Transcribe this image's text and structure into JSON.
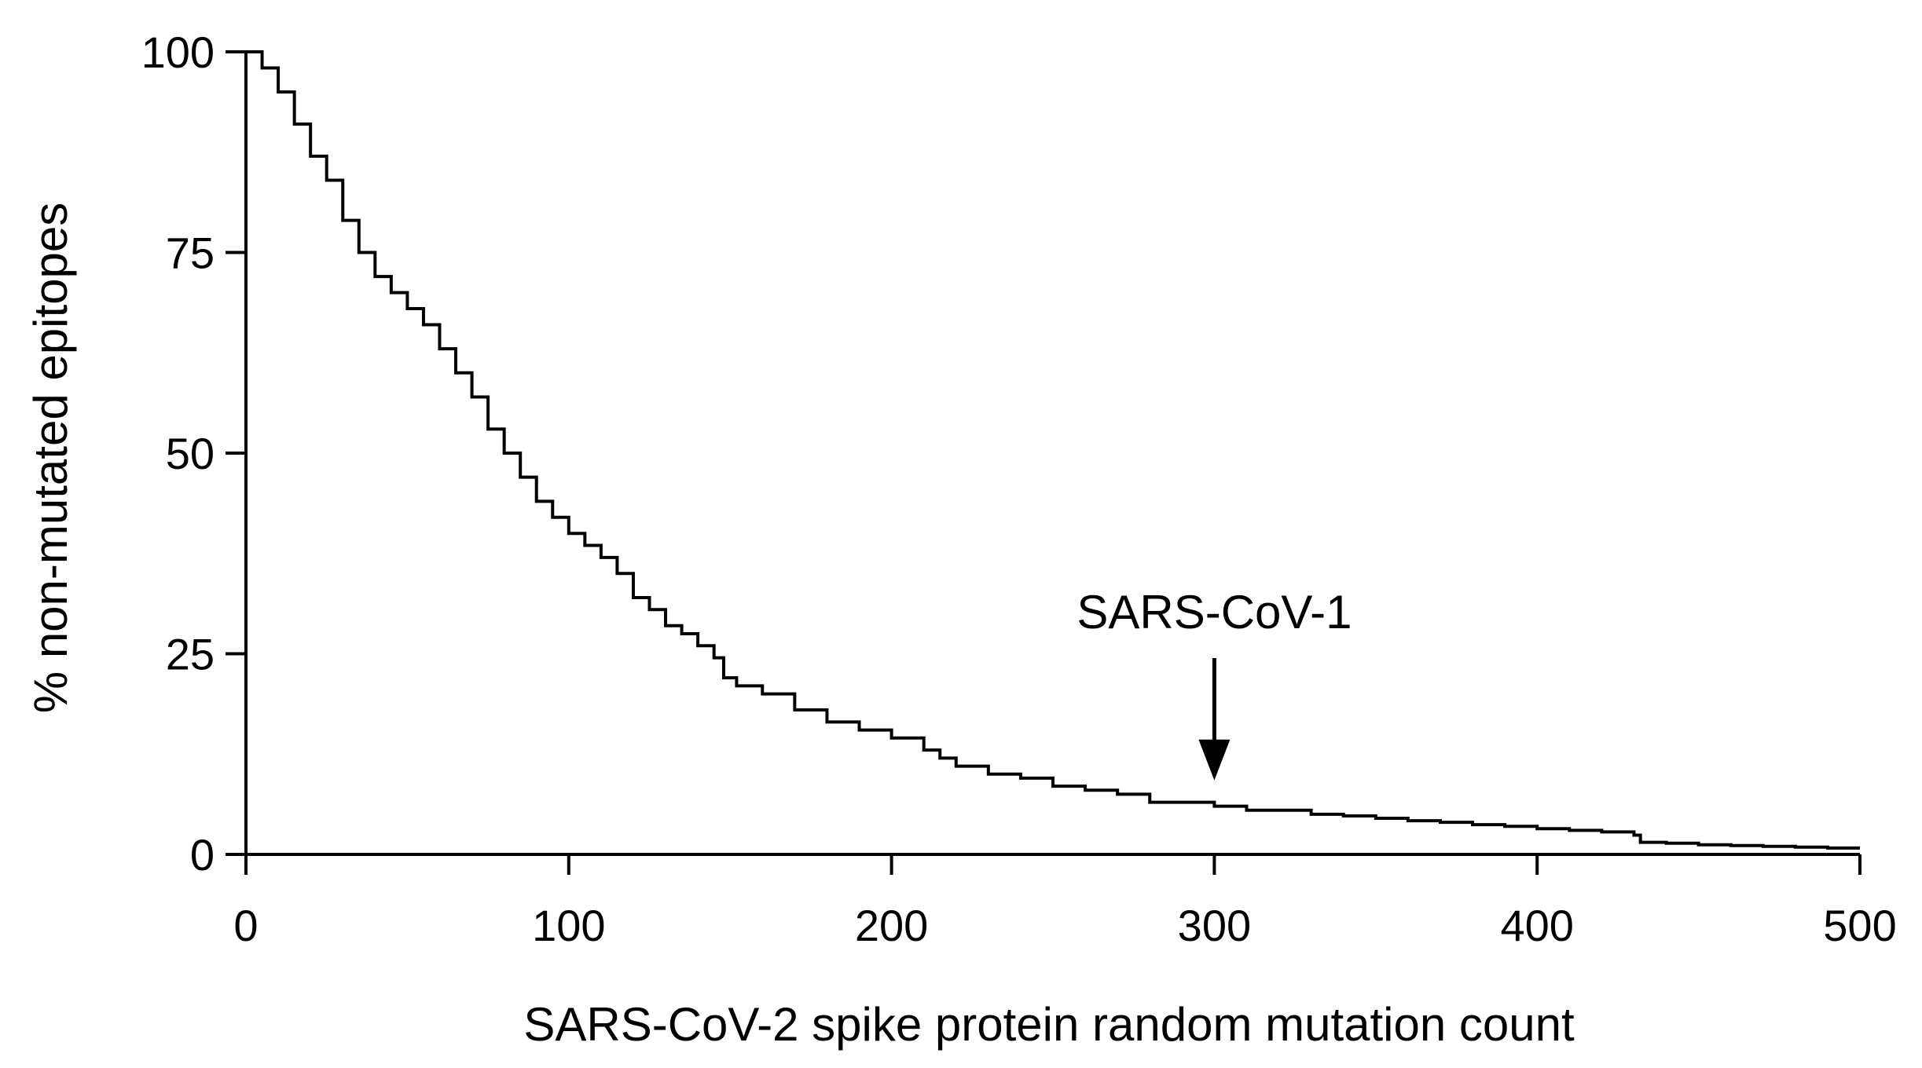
{
  "chart_data": {
    "type": "line",
    "xlabel": "SARS-CoV-2 spike protein random mutation count",
    "ylabel": "% non-mutated epitopes",
    "xlim": [
      0,
      500
    ],
    "ylim": [
      0,
      100
    ],
    "x_ticks": [
      0,
      100,
      200,
      300,
      400,
      500
    ],
    "y_ticks": [
      0,
      25,
      50,
      75,
      100
    ],
    "grid": false,
    "legend": "none",
    "series": [
      {
        "color": "#000000",
        "x": [
          0,
          5,
          10,
          15,
          20,
          25,
          30,
          35,
          40,
          45,
          50,
          55,
          60,
          65,
          70,
          75,
          80,
          85,
          90,
          95,
          100,
          105,
          110,
          115,
          120,
          125,
          130,
          135,
          140,
          145,
          148,
          152,
          160,
          170,
          180,
          190,
          200,
          210,
          215,
          220,
          230,
          240,
          250,
          260,
          270,
          280,
          290,
          300,
          310,
          320,
          330,
          340,
          350,
          360,
          370,
          380,
          390,
          400,
          410,
          420,
          430,
          432,
          440,
          450,
          460,
          470,
          480,
          490,
          500
        ],
        "y": [
          100,
          98,
          95,
          91,
          87,
          84,
          79,
          75,
          72,
          70,
          68,
          66,
          63,
          60,
          57,
          53,
          50,
          47,
          44,
          42,
          40,
          38.5,
          37,
          35,
          32,
          30.5,
          28.5,
          27.5,
          26,
          24.5,
          22,
          21,
          20,
          18,
          16.5,
          15.5,
          14.5,
          13,
          12,
          11,
          10,
          9.5,
          8.5,
          8,
          7.5,
          6.5,
          6.5,
          6,
          5.5,
          5.5,
          5,
          4.8,
          4.5,
          4.2,
          4,
          3.7,
          3.5,
          3.2,
          3,
          2.8,
          2.4,
          1.5,
          1.4,
          1.2,
          1.1,
          1,
          0.9,
          0.8,
          0.8
        ]
      }
    ],
    "annotations": [
      {
        "text": "SARS-CoV-1",
        "x": 300,
        "arrow_tip_y": 10
      }
    ]
  }
}
